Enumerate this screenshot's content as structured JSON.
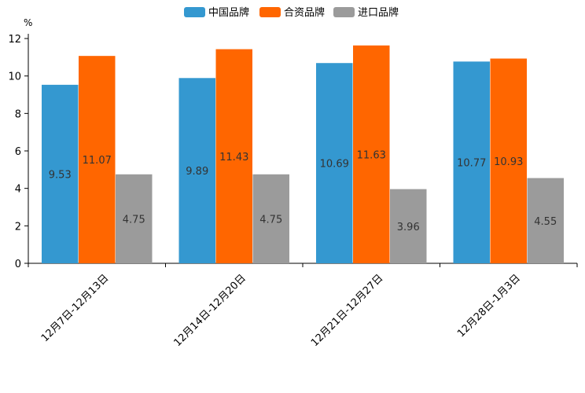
{
  "chart_data": {
    "type": "bar",
    "title": "",
    "xlabel": "",
    "ylabel": "%",
    "ylim": [
      0,
      12
    ],
    "yticks": [
      0,
      2,
      4,
      6,
      8,
      10,
      12
    ],
    "categories": [
      "12月7日-12月13日",
      "12月14日-12月20日",
      "12月21日-12月27日",
      "12月28日-1月3日"
    ],
    "series": [
      {
        "name": "中国品牌",
        "color": "#3498d0",
        "values": [
          9.53,
          9.89,
          10.69,
          10.77
        ]
      },
      {
        "name": "合资品牌",
        "color": "#ff6600",
        "values": [
          11.07,
          11.43,
          11.63,
          10.93
        ]
      },
      {
        "name": "进口品牌",
        "color": "#9b9b9b",
        "values": [
          4.75,
          4.75,
          3.96,
          4.55
        ]
      }
    ],
    "label_color": "#333333",
    "axis_color": "#000000",
    "legend": "top-center",
    "grid": false
  }
}
